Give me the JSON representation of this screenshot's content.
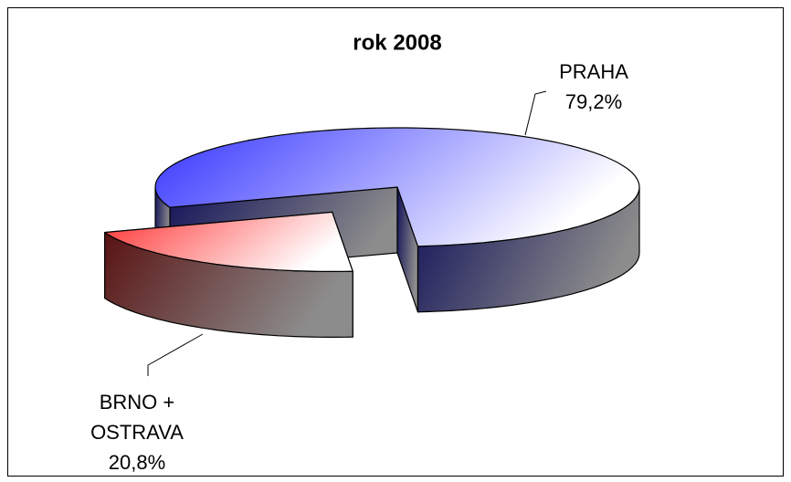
{
  "chart_data": {
    "type": "pie",
    "title": "rok 2008",
    "categories": [
      "PRAHA",
      "BRNO + OSTRAVA"
    ],
    "values": [
      79.2,
      20.8
    ],
    "value_labels": [
      "79,2%",
      "20,8%"
    ],
    "colors": [
      "#3333ff",
      "#ff3333"
    ]
  }
}
